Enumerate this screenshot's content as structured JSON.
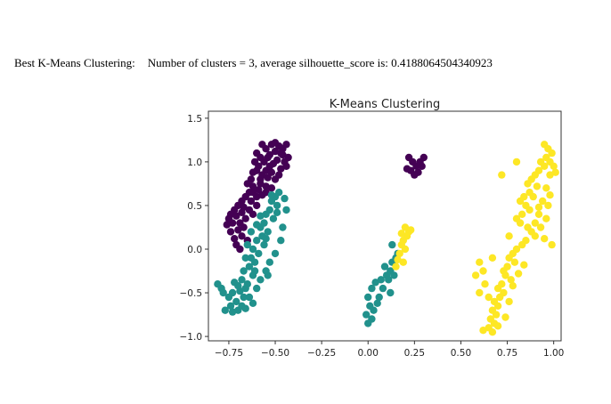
{
  "caption": {
    "prefix": "Best K-Means Clustering:",
    "text": "Number of clusters = 3, average silhouette_score is: 0.4188064504340923"
  },
  "chart_data": {
    "type": "scatter",
    "title": "K-Means Clustering",
    "xlabel": "",
    "ylabel": "",
    "xlim": [
      -0.86,
      1.04
    ],
    "ylim": [
      -1.05,
      1.58
    ],
    "xticks": [
      -0.75,
      -0.5,
      -0.25,
      0.0,
      0.25,
      0.5,
      0.75,
      1.0
    ],
    "xtick_labels": [
      "−0.75",
      "−0.50",
      "−0.25",
      "0.00",
      "0.25",
      "0.50",
      "0.75",
      "1.00"
    ],
    "yticks": [
      -1.0,
      -0.5,
      0.0,
      0.5,
      1.0,
      1.5
    ],
    "ytick_labels": [
      "−1.0",
      "−0.5",
      "0.0",
      "0.5",
      "1.0",
      "1.5"
    ],
    "grid": false,
    "legend": "none",
    "series": [
      {
        "color": "#440154",
        "points": [
          [
            -0.52,
            1.2
          ],
          [
            -0.5,
            1.22
          ],
          [
            -0.48,
            1.18
          ],
          [
            -0.46,
            1.15
          ],
          [
            -0.44,
            1.2
          ],
          [
            -0.47,
            1.1
          ],
          [
            -0.5,
            1.12
          ],
          [
            -0.53,
            1.08
          ],
          [
            -0.55,
            1.15
          ],
          [
            -0.57,
            1.2
          ],
          [
            -0.54,
            1.05
          ],
          [
            -0.49,
            1.02
          ],
          [
            -0.45,
            1.0
          ],
          [
            -0.44,
            0.95
          ],
          [
            -0.47,
            0.92
          ],
          [
            -0.51,
            0.98
          ],
          [
            -0.56,
            1.0
          ],
          [
            -0.58,
            1.05
          ],
          [
            -0.6,
            1.1
          ],
          [
            -0.59,
            0.95
          ],
          [
            -0.55,
            0.9
          ],
          [
            -0.52,
            0.88
          ],
          [
            -0.48,
            0.85
          ],
          [
            -0.5,
            0.8
          ],
          [
            -0.54,
            0.82
          ],
          [
            -0.57,
            0.85
          ],
          [
            -0.6,
            0.9
          ],
          [
            -0.62,
            0.88
          ],
          [
            -0.63,
            0.8
          ],
          [
            -0.58,
            0.75
          ],
          [
            -0.55,
            0.72
          ],
          [
            -0.52,
            0.7
          ],
          [
            -0.59,
            0.68
          ],
          [
            -0.62,
            0.72
          ],
          [
            -0.65,
            0.75
          ],
          [
            -0.64,
            0.65
          ],
          [
            -0.6,
            0.6
          ],
          [
            -0.57,
            0.62
          ],
          [
            -0.66,
            0.6
          ],
          [
            -0.68,
            0.55
          ],
          [
            -0.63,
            0.55
          ],
          [
            -0.6,
            0.5
          ],
          [
            -0.67,
            0.48
          ],
          [
            -0.7,
            0.5
          ],
          [
            -0.72,
            0.45
          ],
          [
            -0.68,
            0.42
          ],
          [
            -0.64,
            0.45
          ],
          [
            -0.74,
            0.4
          ],
          [
            -0.71,
            0.38
          ],
          [
            -0.69,
            0.3
          ],
          [
            -0.73,
            0.3
          ],
          [
            -0.66,
            0.35
          ],
          [
            -0.7,
            0.22
          ],
          [
            -0.74,
            0.2
          ],
          [
            -0.67,
            0.25
          ],
          [
            -0.72,
            0.12
          ],
          [
            -0.68,
            0.15
          ],
          [
            -0.71,
            0.05
          ],
          [
            -0.65,
            0.1
          ],
          [
            -0.69,
            0.0
          ],
          [
            -0.46,
            1.08
          ],
          [
            -0.43,
            1.05
          ],
          [
            -0.53,
            0.95
          ],
          [
            -0.61,
            1.0
          ],
          [
            -0.58,
            0.8
          ],
          [
            -0.62,
            0.65
          ],
          [
            -0.55,
            0.65
          ],
          [
            -0.75,
            0.35
          ],
          [
            -0.76,
            0.28
          ],
          [
            -0.62,
            0.4
          ],
          [
            0.22,
            1.05
          ],
          [
            0.24,
            1.0
          ],
          [
            0.26,
            0.95
          ],
          [
            0.28,
            1.0
          ],
          [
            0.29,
            0.95
          ],
          [
            0.27,
            0.88
          ],
          [
            0.23,
            0.9
          ],
          [
            0.25,
            0.85
          ],
          [
            0.3,
            1.05
          ],
          [
            0.21,
            0.92
          ]
        ]
      },
      {
        "color": "#21918c",
        "points": [
          [
            -0.48,
            0.65
          ],
          [
            -0.5,
            0.6
          ],
          [
            -0.52,
            0.55
          ],
          [
            -0.49,
            0.5
          ],
          [
            -0.53,
            0.45
          ],
          [
            -0.55,
            0.4
          ],
          [
            -0.51,
            0.35
          ],
          [
            -0.56,
            0.3
          ],
          [
            -0.58,
            0.25
          ],
          [
            -0.54,
            0.2
          ],
          [
            -0.57,
            0.15
          ],
          [
            -0.6,
            0.1
          ],
          [
            -0.56,
            0.05
          ],
          [
            -0.62,
            0.0
          ],
          [
            -0.59,
            -0.05
          ],
          [
            -0.63,
            -0.1
          ],
          [
            -0.61,
            -0.15
          ],
          [
            -0.66,
            -0.1
          ],
          [
            -0.64,
            -0.2
          ],
          [
            -0.67,
            -0.25
          ],
          [
            -0.62,
            -0.3
          ],
          [
            -0.68,
            -0.35
          ],
          [
            -0.65,
            -0.4
          ],
          [
            -0.7,
            -0.42
          ],
          [
            -0.72,
            -0.38
          ],
          [
            -0.69,
            -0.48
          ],
          [
            -0.73,
            -0.5
          ],
          [
            -0.67,
            -0.55
          ],
          [
            -0.71,
            -0.6
          ],
          [
            -0.75,
            -0.55
          ],
          [
            -0.74,
            -0.65
          ],
          [
            -0.7,
            -0.7
          ],
          [
            -0.77,
            -0.7
          ],
          [
            -0.73,
            -0.72
          ],
          [
            -0.68,
            -0.65
          ],
          [
            -0.64,
            -0.55
          ],
          [
            -0.6,
            -0.45
          ],
          [
            -0.58,
            -0.35
          ],
          [
            -0.55,
            -0.25
          ],
          [
            -0.53,
            -0.15
          ],
          [
            -0.5,
            -0.05
          ],
          [
            -0.47,
            0.1
          ],
          [
            -0.46,
            0.25
          ],
          [
            -0.44,
            0.45
          ],
          [
            -0.45,
            0.58
          ],
          [
            -0.62,
            -0.62
          ],
          [
            -0.66,
            -0.68
          ],
          [
            -0.79,
            -0.45
          ],
          [
            -0.81,
            -0.4
          ],
          [
            -0.78,
            -0.5
          ],
          [
            -0.63,
            0.2
          ],
          [
            -0.6,
            0.28
          ],
          [
            -0.58,
            0.38
          ],
          [
            -0.55,
            0.12
          ],
          [
            -0.65,
            0.05
          ],
          [
            -0.52,
            0.62
          ],
          [
            -0.49,
            0.42
          ],
          [
            -0.54,
            -0.3
          ],
          [
            -0.61,
            -0.25
          ],
          [
            -0.66,
            -0.45
          ],
          [
            0.0,
            -0.85
          ],
          [
            0.02,
            -0.8
          ],
          [
            -0.01,
            -0.75
          ],
          [
            0.01,
            -0.65
          ],
          [
            0.0,
            -0.55
          ],
          [
            0.02,
            -0.45
          ],
          [
            0.04,
            -0.38
          ],
          [
            0.06,
            -0.55
          ],
          [
            0.08,
            -0.45
          ],
          [
            0.07,
            -0.35
          ],
          [
            0.1,
            -0.3
          ],
          [
            0.12,
            -0.25
          ],
          [
            0.09,
            -0.2
          ],
          [
            0.13,
            -0.15
          ],
          [
            0.15,
            -0.1
          ],
          [
            0.11,
            -0.35
          ],
          [
            0.14,
            -0.3
          ],
          [
            0.16,
            -0.05
          ],
          [
            0.13,
            0.05
          ],
          [
            0.12,
            -0.5
          ],
          [
            0.05,
            -0.62
          ],
          [
            0.03,
            -0.7
          ]
        ]
      },
      {
        "color": "#fde725",
        "points": [
          [
            0.95,
            1.2
          ],
          [
            0.97,
            1.15
          ],
          [
            0.99,
            1.1
          ],
          [
            0.96,
            1.05
          ],
          [
            0.93,
            1.0
          ],
          [
            0.98,
            1.0
          ],
          [
            0.95,
            0.95
          ],
          [
            0.92,
            0.9
          ],
          [
            0.9,
            0.85
          ],
          [
            0.88,
            0.8
          ],
          [
            0.86,
            0.75
          ],
          [
            0.87,
            0.65
          ],
          [
            0.84,
            0.6
          ],
          [
            0.82,
            0.55
          ],
          [
            0.85,
            0.5
          ],
          [
            0.83,
            0.4
          ],
          [
            0.8,
            0.35
          ],
          [
            0.82,
            0.3
          ],
          [
            0.86,
            0.25
          ],
          [
            0.88,
            0.2
          ],
          [
            0.9,
            0.15
          ],
          [
            0.85,
            0.1
          ],
          [
            0.83,
            0.05
          ],
          [
            0.8,
            0.0
          ],
          [
            0.78,
            -0.05
          ],
          [
            0.76,
            -0.1
          ],
          [
            0.79,
            -0.15
          ],
          [
            0.75,
            -0.2
          ],
          [
            0.73,
            -0.25
          ],
          [
            0.74,
            -0.3
          ],
          [
            0.77,
            -0.35
          ],
          [
            0.72,
            -0.4
          ],
          [
            0.7,
            -0.45
          ],
          [
            0.73,
            -0.5
          ],
          [
            0.71,
            -0.55
          ],
          [
            0.68,
            -0.6
          ],
          [
            0.7,
            -0.65
          ],
          [
            0.67,
            -0.7
          ],
          [
            0.69,
            -0.75
          ],
          [
            0.66,
            -0.8
          ],
          [
            0.68,
            -0.85
          ],
          [
            0.65,
            -0.9
          ],
          [
            0.62,
            -0.93
          ],
          [
            0.67,
            -0.95
          ],
          [
            0.7,
            -0.88
          ],
          [
            0.74,
            -0.78
          ],
          [
            0.76,
            -0.6
          ],
          [
            0.78,
            -0.42
          ],
          [
            0.81,
            -0.28
          ],
          [
            0.84,
            -0.18
          ],
          [
            0.9,
            0.3
          ],
          [
            0.92,
            0.4
          ],
          [
            0.94,
            0.55
          ],
          [
            0.96,
            0.7
          ],
          [
            0.98,
            0.85
          ],
          [
            1.0,
            0.95
          ],
          [
            0.91,
            0.72
          ],
          [
            0.89,
            0.6
          ],
          [
            0.87,
            0.45
          ],
          [
            0.93,
            0.25
          ],
          [
            0.96,
            0.35
          ],
          [
            0.98,
            0.62
          ],
          [
            0.95,
            0.12
          ],
          [
            0.99,
            0.05
          ],
          [
            1.01,
            0.88
          ],
          [
            0.8,
            1.0
          ],
          [
            0.72,
            0.85
          ],
          [
            0.76,
            0.15
          ],
          [
            0.67,
            -0.1
          ],
          [
            0.62,
            -0.25
          ],
          [
            0.6,
            -0.15
          ],
          [
            0.58,
            -0.3
          ],
          [
            0.63,
            -0.4
          ],
          [
            0.65,
            -0.55
          ],
          [
            0.6,
            -0.5
          ],
          [
            0.92,
            0.48
          ],
          [
            0.97,
            0.5
          ],
          [
            0.2,
            0.25
          ],
          [
            0.22,
            0.2
          ],
          [
            0.21,
            0.15
          ],
          [
            0.19,
            0.1
          ],
          [
            0.18,
            0.05
          ],
          [
            0.2,
            0.0
          ],
          [
            0.17,
            -0.05
          ],
          [
            0.16,
            -0.12
          ],
          [
            0.19,
            -0.15
          ],
          [
            0.15,
            -0.2
          ],
          [
            0.23,
            0.22
          ],
          [
            0.18,
            0.18
          ]
        ]
      }
    ]
  }
}
